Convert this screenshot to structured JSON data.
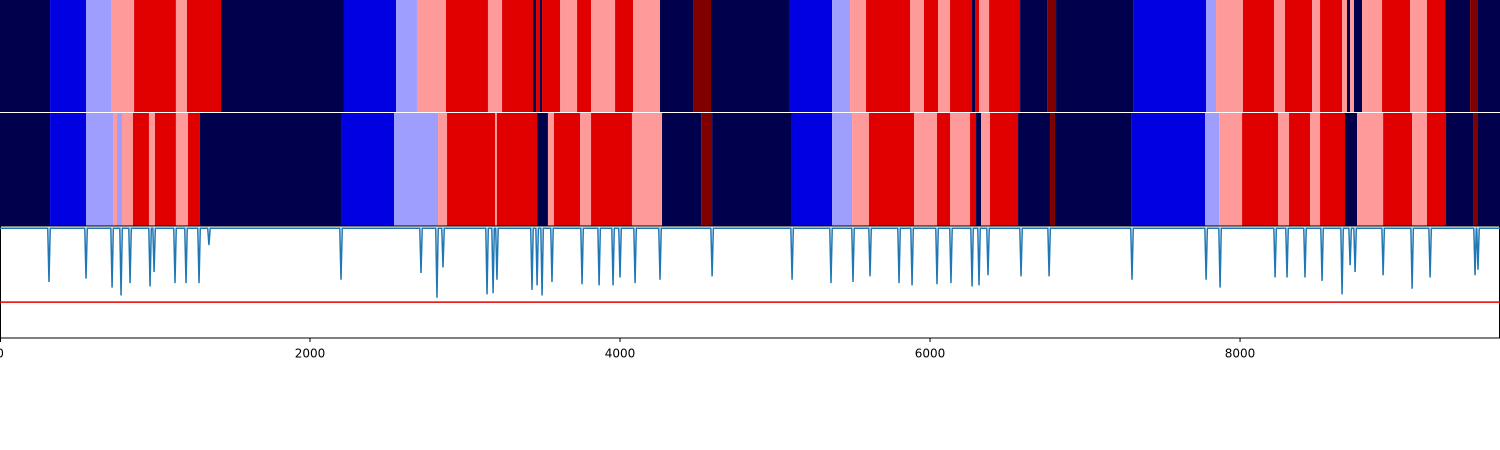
{
  "chart_data": {
    "type": "segmentation",
    "xlim": [
      0,
      9677
    ],
    "xticks": [
      0,
      2000,
      4000,
      6000,
      8000
    ],
    "class_colors": [
      "#00004c",
      "#0000e0",
      "#9e9eff",
      "#ff9a9a",
      "#e00000",
      "#800000"
    ],
    "strips": [
      {
        "edges": [
          0,
          323,
          555,
          716,
          865,
          1135,
          1206,
          1426,
          2219,
          2555,
          2690,
          2877,
          3148,
          3239,
          3439,
          3458,
          3484,
          3497,
          3613,
          3723,
          3813,
          3968,
          4084,
          4258,
          4471,
          4587,
          5090,
          5368,
          5484,
          5587,
          5871,
          5961,
          6052,
          6129,
          6271,
          6290,
          6316,
          6381,
          6581,
          6755,
          6813,
          7310,
          7781,
          7845,
          8019,
          8219,
          8290,
          8465,
          8516,
          8658,
          8690,
          8710,
          8735,
          8787,
          8916,
          9097,
          9206,
          9323,
          9484,
          9535,
          9677
        ],
        "classes": [
          0,
          1,
          2,
          3,
          4,
          3,
          4,
          0,
          1,
          2,
          3,
          4,
          3,
          4,
          0,
          4,
          0,
          4,
          3,
          4,
          3,
          4,
          3,
          0,
          5,
          0,
          1,
          2,
          3,
          4,
          3,
          4,
          3,
          4,
          0,
          4,
          3,
          4,
          0,
          5,
          0,
          1,
          2,
          3,
          4,
          3,
          4,
          3,
          4,
          3,
          0,
          3,
          0,
          3,
          4,
          3,
          4,
          0,
          5,
          0
        ]
      },
      {
        "edges": [
          0,
          323,
          555,
          729,
          755,
          787,
          858,
          961,
          1000,
          1135,
          1213,
          1290,
          2200,
          2542,
          2826,
          2884,
          3194,
          3206,
          3465,
          3535,
          3574,
          3742,
          3813,
          4077,
          4271,
          4523,
          4594,
          5103,
          5368,
          5497,
          5606,
          5897,
          6045,
          6129,
          6258,
          6297,
          6329,
          6387,
          6568,
          6774,
          6806,
          7297,
          7774,
          7865,
          8013,
          8245,
          8316,
          8452,
          8516,
          8677,
          8755,
          8923,
          9110,
          9206,
          9329,
          9503,
          9535,
          9677
        ],
        "classes": [
          0,
          1,
          2,
          3,
          2,
          3,
          4,
          3,
          4,
          3,
          4,
          0,
          1,
          2,
          3,
          4,
          3,
          4,
          0,
          3,
          4,
          3,
          4,
          3,
          0,
          5,
          0,
          1,
          2,
          3,
          4,
          3,
          4,
          3,
          4,
          0,
          3,
          4,
          0,
          5,
          0,
          1,
          2,
          3,
          4,
          3,
          4,
          3,
          4,
          0,
          3,
          4,
          3,
          4,
          0,
          5,
          0
        ]
      }
    ],
    "line": {
      "color": "#1f77b4",
      "ylim": [
        0,
        1
      ],
      "x": [
        0,
        308,
        316,
        324,
        547,
        555,
        563,
        715,
        723,
        731,
        773,
        781,
        789,
        831,
        839,
        847,
        960,
        968,
        976,
        986,
        994,
        1002,
        1121,
        1129,
        1137,
        1192,
        1200,
        1208,
        1276,
        1284,
        1292,
        1340,
        1348,
        1356,
        2192,
        2200,
        2208,
        2708,
        2716,
        2724,
        2811,
        2819,
        2827,
        2850,
        2858,
        2866,
        3134,
        3142,
        3150,
        3173,
        3181,
        3189,
        3198,
        3206,
        3214,
        3424,
        3432,
        3440,
        3457,
        3465,
        3473,
        3489,
        3497,
        3505,
        3553,
        3561,
        3569,
        3747,
        3755,
        3763,
        3857,
        3865,
        3873,
        3947,
        3955,
        3963,
        3992,
        4000,
        4008,
        4089,
        4097,
        4105,
        4250,
        4258,
        4266,
        4586,
        4594,
        4602,
        5102,
        5110,
        5118,
        5353,
        5361,
        5369,
        5495,
        5503,
        5511,
        5605,
        5613,
        5621,
        5792,
        5800,
        5808,
        5876,
        5884,
        5892,
        6037,
        6045,
        6053,
        6127,
        6135,
        6143,
        6263,
        6271,
        6279,
        6308,
        6316,
        6324,
        6366,
        6374,
        6382,
        6579,
        6587,
        6595,
        6760,
        6768,
        6776,
        7295,
        7303,
        7311,
        7773,
        7781,
        7789,
        7863,
        7871,
        7879,
        8218,
        8226,
        8234,
        8295,
        8303,
        8311,
        8411,
        8419,
        8427,
        8521,
        8529,
        8537,
        8650,
        8658,
        8666,
        8702,
        8710,
        8718,
        8734,
        8742,
        8750,
        8915,
        8923,
        8931,
        9102,
        9110,
        9118,
        9218,
        9226,
        9234,
        9508,
        9516,
        9524,
        9527,
        9535,
        9543,
        9677
      ],
      "y": [
        0.98,
        0.98,
        0.5,
        0.98,
        0.98,
        0.53,
        0.98,
        0.98,
        0.45,
        0.98,
        0.98,
        0.38,
        0.98,
        0.98,
        0.49,
        0.98,
        0.98,
        0.46,
        0.98,
        0.98,
        0.59,
        0.98,
        0.98,
        0.49,
        0.98,
        0.98,
        0.49,
        0.98,
        0.98,
        0.49,
        0.98,
        0.98,
        0.83,
        0.98,
        0.98,
        0.52,
        0.98,
        0.98,
        0.58,
        0.98,
        0.98,
        0.36,
        0.98,
        0.98,
        0.63,
        0.98,
        0.98,
        0.39,
        0.98,
        0.98,
        0.4,
        0.98,
        0.98,
        0.52,
        0.98,
        0.98,
        0.43,
        0.98,
        0.98,
        0.47,
        0.98,
        0.98,
        0.38,
        0.98,
        0.98,
        0.5,
        0.98,
        0.98,
        0.48,
        0.98,
        0.98,
        0.47,
        0.98,
        0.98,
        0.47,
        0.98,
        0.98,
        0.54,
        0.98,
        0.98,
        0.49,
        0.98,
        0.98,
        0.52,
        0.98,
        0.98,
        0.55,
        0.98,
        0.98,
        0.52,
        0.98,
        0.98,
        0.49,
        0.98,
        0.98,
        0.5,
        0.98,
        0.98,
        0.55,
        0.98,
        0.98,
        0.49,
        0.98,
        0.98,
        0.47,
        0.98,
        0.98,
        0.48,
        0.98,
        0.98,
        0.49,
        0.98,
        0.98,
        0.46,
        0.98,
        0.98,
        0.47,
        0.98,
        0.98,
        0.56,
        0.98,
        0.98,
        0.55,
        0.98,
        0.98,
        0.55,
        0.98,
        0.98,
        0.52,
        0.98,
        0.98,
        0.52,
        0.98,
        0.98,
        0.45,
        0.98,
        0.98,
        0.54,
        0.98,
        0.98,
        0.54,
        0.98,
        0.98,
        0.54,
        0.98,
        0.98,
        0.51,
        0.98,
        0.98,
        0.39,
        0.98,
        0.98,
        0.65,
        0.98,
        0.98,
        0.59,
        0.98,
        0.98,
        0.56,
        0.98,
        0.98,
        0.44,
        0.98,
        0.98,
        0.54,
        0.98,
        0.98,
        0.56,
        0.98,
        0.98,
        0.61,
        0.98,
        0.98
      ],
      "threshold": 0.32,
      "threshold_color": "#e00000"
    }
  }
}
